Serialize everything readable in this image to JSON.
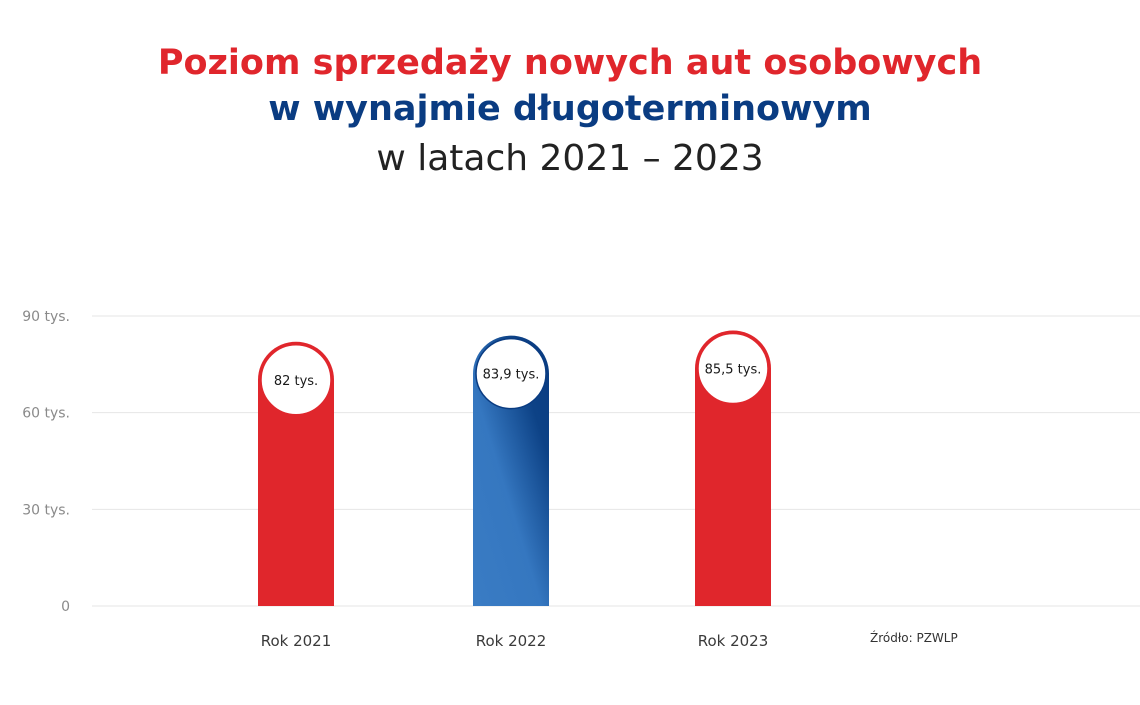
{
  "title": {
    "line1": "Poziom sprzedaży nowych aut osobowych",
    "line2": "w wynajmie długoterminowym",
    "line3": "w latach 2021 – 2023"
  },
  "source": "Źródło: PZWLP",
  "colors": {
    "title_red": "#e0262c",
    "title_blue": "#0a3c82",
    "bar_red": "#e0262c",
    "bar_blue_light": "#3a7cc4",
    "bar_blue_dark": "#0a3c82",
    "grid": "#e6e6e6",
    "axis_label": "#8a8a8a"
  },
  "chart_data": {
    "type": "bar",
    "categories": [
      "Rok 2021",
      "Rok 2022",
      "Rok 2023"
    ],
    "values": [
      82,
      83.9,
      85.5
    ],
    "value_labels": [
      "82 tys.",
      "83,9 tys.",
      "85,5 tys."
    ],
    "bar_colors": [
      "red",
      "blue",
      "red"
    ],
    "yticks": [
      0,
      30,
      60,
      90
    ],
    "ytick_labels": [
      "0",
      "30 tys.",
      "60 tys.",
      "90 tys."
    ],
    "ylim": [
      0,
      90
    ],
    "grid": true
  }
}
